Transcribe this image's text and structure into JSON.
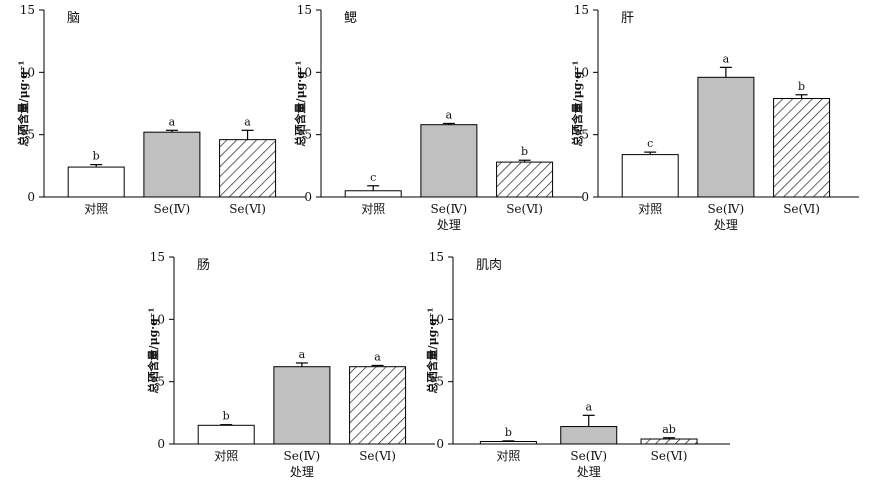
{
  "chart_data": [
    {
      "type": "bar",
      "title": "脑",
      "ylabel": "总硒含量/μg·g⁻¹",
      "xlabel": "",
      "ylim": [
        0,
        15
      ],
      "yticks": [
        0,
        5,
        10,
        15
      ],
      "categories": [
        "对照",
        "Se(Ⅳ)",
        "Se(Ⅵ)"
      ],
      "values": [
        2.4,
        5.2,
        4.6
      ],
      "errors": [
        0.2,
        0.15,
        0.75
      ],
      "labels": [
        "b",
        "a",
        "a"
      ],
      "fills": [
        "white",
        "gray",
        "hatch"
      ]
    },
    {
      "type": "bar",
      "title": "鳃",
      "ylabel": "总硒含量/μg·g⁻¹",
      "xlabel": "处理",
      "ylim": [
        0,
        15
      ],
      "yticks": [
        0,
        5,
        10,
        15
      ],
      "categories": [
        "对照",
        "Se(Ⅳ)",
        "Se(Ⅵ)"
      ],
      "values": [
        0.5,
        5.8,
        2.8
      ],
      "errors": [
        0.4,
        0.1,
        0.15
      ],
      "labels": [
        "c",
        "a",
        "b"
      ],
      "fills": [
        "white",
        "gray",
        "hatch"
      ]
    },
    {
      "type": "bar",
      "title": "肝",
      "ylabel": "总硒含量/μg·g⁻¹",
      "xlabel": "处理",
      "ylim": [
        0,
        15
      ],
      "yticks": [
        0,
        5,
        10,
        15
      ],
      "categories": [
        "对照",
        "Se(Ⅳ)",
        "Se(Ⅵ)"
      ],
      "values": [
        3.4,
        9.6,
        7.9
      ],
      "errors": [
        0.2,
        0.8,
        0.3
      ],
      "labels": [
        "c",
        "a",
        "b"
      ],
      "fills": [
        "white",
        "gray",
        "hatch"
      ]
    },
    {
      "type": "bar",
      "title": "肠",
      "ylabel": "总硒含量/μg·g⁻¹",
      "xlabel": "处理",
      "ylim": [
        0,
        15
      ],
      "yticks": [
        0,
        5,
        10,
        15
      ],
      "categories": [
        "对照",
        "Se(Ⅳ)",
        "Se(Ⅵ)"
      ],
      "values": [
        1.5,
        6.2,
        6.2
      ],
      "errors": [
        0.05,
        0.3,
        0.1
      ],
      "labels": [
        "b",
        "a",
        "a"
      ],
      "fills": [
        "white",
        "gray",
        "hatch"
      ]
    },
    {
      "type": "bar",
      "title": "肌肉",
      "ylabel": "总硒含量/μg·g⁻¹",
      "xlabel": "处理",
      "ylim": [
        0,
        15
      ],
      "yticks": [
        0,
        5,
        10,
        15
      ],
      "categories": [
        "对照",
        "Se(Ⅳ)",
        "Se(Ⅵ)"
      ],
      "values": [
        0.2,
        1.4,
        0.4
      ],
      "errors": [
        0.05,
        0.9,
        0.1
      ],
      "labels": [
        "b",
        "a",
        "ab"
      ],
      "fills": [
        "white",
        "gray",
        "hatch"
      ]
    }
  ],
  "colors": {
    "gray_bar": "#c0c0c0",
    "white_bar": "#ffffff",
    "hatch_line": "#222222",
    "axis": "#000000"
  }
}
